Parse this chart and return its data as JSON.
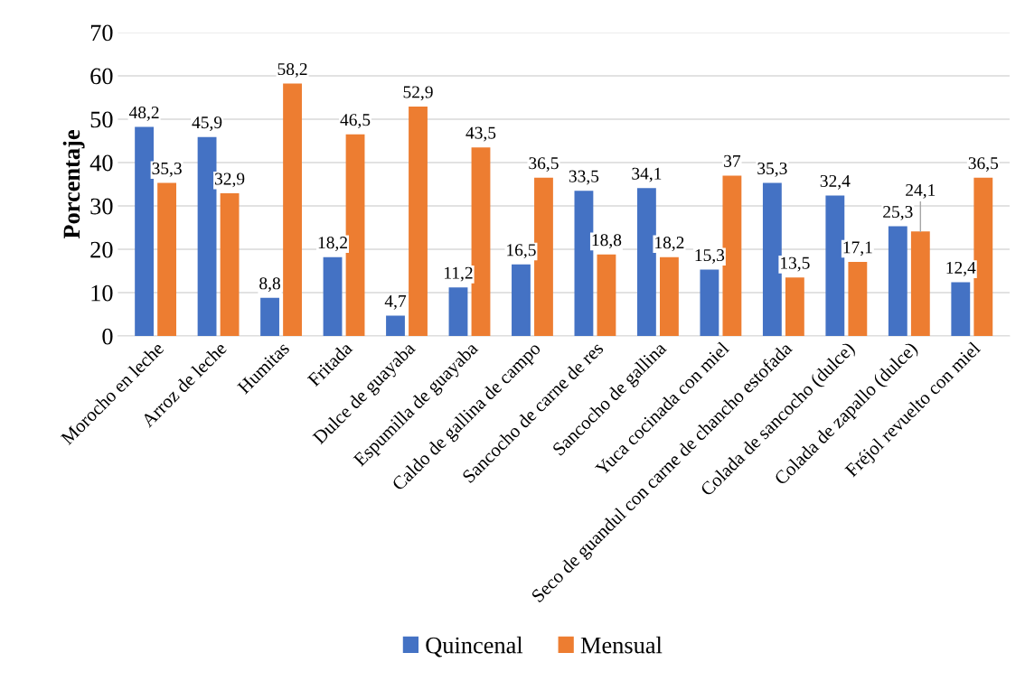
{
  "chart_data": {
    "type": "bar",
    "ylabel": "Porcentaje",
    "categories": [
      "Morocho en leche",
      "Arroz de leche",
      "Humitas",
      "Fritada",
      "Dulce de guayaba",
      "Espumilla de guayaba",
      "Caldo de gallina de campo",
      "Sancocho de carne de res",
      "Sancocho de gallina",
      "Yuca cocinada con miel",
      "Seco de guandul con carne de chancho estofada",
      "Colada de sancocho (dulce)",
      "Colada de zapallo (dulce)",
      "Fréjol revuelto con miel"
    ],
    "series": [
      {
        "name": "Quincenal",
        "color": "#4472c4",
        "values": [
          48.2,
          45.9,
          8.8,
          18.2,
          4.7,
          11.2,
          16.5,
          33.5,
          34.1,
          15.3,
          35.3,
          32.4,
          25.3,
          12.4
        ],
        "value_labels": [
          "48,2",
          "45,9",
          "8,8",
          "18,2",
          "4,7",
          "11,2",
          "16,5",
          "33,5",
          "34,1",
          "15,3",
          "35,3",
          "32,4",
          "25,3",
          "12,4"
        ]
      },
      {
        "name": "Mensual",
        "color": "#ed7d31",
        "values": [
          35.3,
          32.9,
          58.2,
          46.5,
          52.9,
          43.5,
          36.5,
          18.8,
          18.2,
          37,
          13.5,
          17.1,
          24.1,
          36.5
        ],
        "value_labels": [
          "35,3",
          "32,9",
          "58,2",
          "46,5",
          "52,9",
          "43,5",
          "36,5",
          "18,8",
          "18,2",
          "37",
          "13,5",
          "17,1",
          "24,1",
          "36,5"
        ]
      }
    ],
    "ylim": [
      0,
      70
    ],
    "yticks": [
      0,
      10,
      20,
      30,
      40,
      50,
      60,
      70
    ],
    "grid": "y",
    "legend": "bottom"
  }
}
